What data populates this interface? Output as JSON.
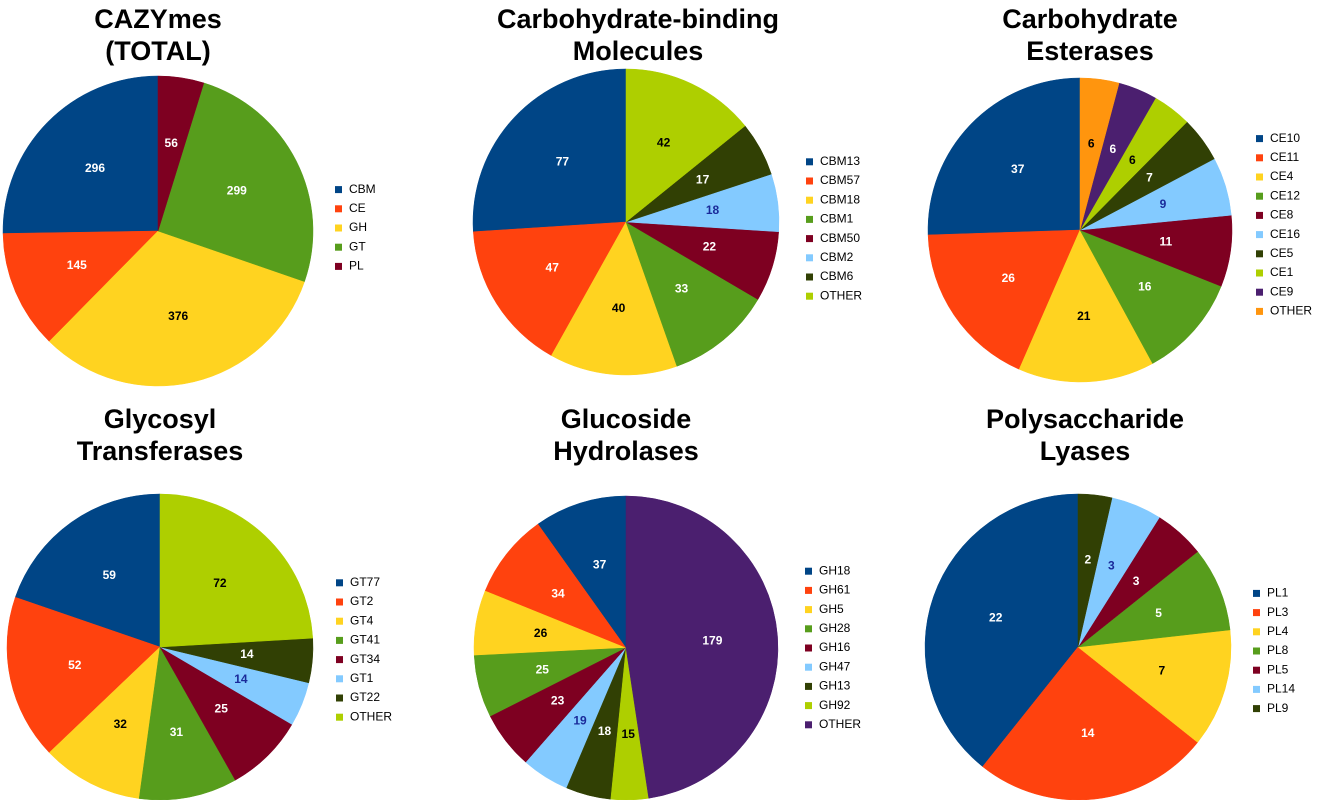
{
  "chart_data": [
    {
      "type": "pie",
      "title": [
        "CAZYmes",
        "(TOTAL)"
      ],
      "legend_position": "right",
      "slices": [
        {
          "label": "CBM",
          "value": 296,
          "color": "#004586",
          "text_color": "#ffffff"
        },
        {
          "label": "CE",
          "value": 145,
          "color": "#ff420e",
          "text_color": "#ffffff"
        },
        {
          "label": "GH",
          "value": 376,
          "color": "#ffd320",
          "text_color": "#000000"
        },
        {
          "label": "GT",
          "value": 299,
          "color": "#579d1c",
          "text_color": "#ffffff"
        },
        {
          "label": "PL",
          "value": 56,
          "color": "#7e0021",
          "text_color": "#ffffff"
        }
      ]
    },
    {
      "type": "pie",
      "title": [
        "Carbohydrate-binding",
        "Molecules"
      ],
      "legend_position": "right",
      "slices": [
        {
          "label": "CBM13",
          "value": 77,
          "color": "#004586",
          "text_color": "#ffffff"
        },
        {
          "label": "CBM57",
          "value": 47,
          "color": "#ff420e",
          "text_color": "#ffffff"
        },
        {
          "label": "CBM18",
          "value": 40,
          "color": "#ffd320",
          "text_color": "#000000"
        },
        {
          "label": "CBM1",
          "value": 33,
          "color": "#579d1c",
          "text_color": "#ffffff"
        },
        {
          "label": "CBM50",
          "value": 22,
          "color": "#7e0021",
          "text_color": "#ffffff"
        },
        {
          "label": "CBM2",
          "value": 18,
          "color": "#83caff",
          "text_color": "#1a2a9a"
        },
        {
          "label": "CBM6",
          "value": 17,
          "color": "#314004",
          "text_color": "#ffffff"
        },
        {
          "label": "OTHER",
          "value": 42,
          "color": "#aecf00",
          "text_color": "#000000"
        }
      ]
    },
    {
      "type": "pie",
      "title": [
        "Carbohydrate",
        "Esterases"
      ],
      "legend_position": "right",
      "slices": [
        {
          "label": "CE10",
          "value": 37,
          "color": "#004586",
          "text_color": "#ffffff"
        },
        {
          "label": "CE11",
          "value": 26,
          "color": "#ff420e",
          "text_color": "#ffffff"
        },
        {
          "label": "CE4",
          "value": 21,
          "color": "#ffd320",
          "text_color": "#000000"
        },
        {
          "label": "CE12",
          "value": 16,
          "color": "#579d1c",
          "text_color": "#ffffff"
        },
        {
          "label": "CE8",
          "value": 11,
          "color": "#7e0021",
          "text_color": "#ffffff"
        },
        {
          "label": "CE16",
          "value": 9,
          "color": "#83caff",
          "text_color": "#1a2a9a"
        },
        {
          "label": "CE5",
          "value": 7,
          "color": "#314004",
          "text_color": "#ffffff"
        },
        {
          "label": "CE1",
          "value": 6,
          "color": "#aecf00",
          "text_color": "#000000"
        },
        {
          "label": "CE9",
          "value": 6,
          "color": "#4b1f6f",
          "text_color": "#ffffff"
        },
        {
          "label": "OTHER",
          "value": 6,
          "color": "#ff950e",
          "text_color": "#000000"
        }
      ]
    },
    {
      "type": "pie",
      "title": [
        "Glycosyl",
        "Transferases"
      ],
      "legend_position": "right",
      "slices": [
        {
          "label": "GT77",
          "value": 59,
          "color": "#004586",
          "text_color": "#ffffff"
        },
        {
          "label": "GT2",
          "value": 52,
          "color": "#ff420e",
          "text_color": "#ffffff"
        },
        {
          "label": "GT4",
          "value": 32,
          "color": "#ffd320",
          "text_color": "#000000"
        },
        {
          "label": "GT41",
          "value": 31,
          "color": "#579d1c",
          "text_color": "#ffffff"
        },
        {
          "label": "GT34",
          "value": 25,
          "color": "#7e0021",
          "text_color": "#ffffff"
        },
        {
          "label": "GT1",
          "value": 14,
          "color": "#83caff",
          "text_color": "#1a2a9a"
        },
        {
          "label": "GT22",
          "value": 14,
          "color": "#314004",
          "text_color": "#ffffff"
        },
        {
          "label": "OTHER",
          "value": 72,
          "color": "#aecf00",
          "text_color": "#000000"
        }
      ]
    },
    {
      "type": "pie",
      "title": [
        "Glucoside",
        "Hydrolases"
      ],
      "legend_position": "right",
      "slices": [
        {
          "label": "GH18",
          "value": 37,
          "color": "#004586",
          "text_color": "#ffffff"
        },
        {
          "label": "GH61",
          "value": 34,
          "color": "#ff420e",
          "text_color": "#ffffff"
        },
        {
          "label": "GH5",
          "value": 26,
          "color": "#ffd320",
          "text_color": "#000000"
        },
        {
          "label": "GH28",
          "value": 25,
          "color": "#579d1c",
          "text_color": "#ffffff"
        },
        {
          "label": "GH16",
          "value": 23,
          "color": "#7e0021",
          "text_color": "#ffffff"
        },
        {
          "label": "GH47",
          "value": 19,
          "color": "#83caff",
          "text_color": "#1a2a9a"
        },
        {
          "label": "GH13",
          "value": 18,
          "color": "#314004",
          "text_color": "#ffffff"
        },
        {
          "label": "GH92",
          "value": 15,
          "color": "#aecf00",
          "text_color": "#000000"
        },
        {
          "label": "OTHER",
          "value": 179,
          "color": "#4b1f6f",
          "text_color": "#ffffff"
        }
      ]
    },
    {
      "type": "pie",
      "title": [
        "Polysaccharide",
        "Lyases"
      ],
      "legend_position": "right",
      "slices": [
        {
          "label": "PL1",
          "value": 22,
          "color": "#004586",
          "text_color": "#ffffff"
        },
        {
          "label": "PL3",
          "value": 14,
          "color": "#ff420e",
          "text_color": "#ffffff"
        },
        {
          "label": "PL4",
          "value": 7,
          "color": "#ffd320",
          "text_color": "#000000"
        },
        {
          "label": "PL8",
          "value": 5,
          "color": "#579d1c",
          "text_color": "#ffffff"
        },
        {
          "label": "PL5",
          "value": 3,
          "color": "#7e0021",
          "text_color": "#ffffff"
        },
        {
          "label": "PL14",
          "value": 3,
          "color": "#83caff",
          "text_color": "#1a2a9a"
        },
        {
          "label": "PL9",
          "value": 2,
          "color": "#314004",
          "text_color": "#ffffff"
        }
      ]
    }
  ]
}
